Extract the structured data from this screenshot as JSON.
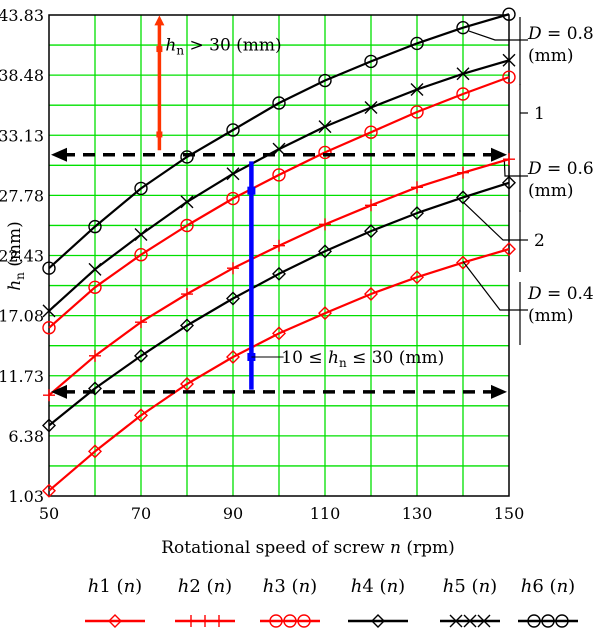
{
  "chart_data": {
    "type": "line",
    "xlabel_prefix": "Rotational speed of screw ",
    "xlabel_var": "n",
    "xlabel_unit": " (rpm)",
    "ylabel_var": "h",
    "ylabel_sub": "n",
    "ylabel_unit": " (mm)",
    "xlim": [
      50,
      150
    ],
    "ylim": [
      1.03,
      43.83
    ],
    "x_ticks": [
      "50",
      "70",
      "90",
      "110",
      "130",
      "150"
    ],
    "y_ticks": [
      "1.03",
      "6.38",
      "11.73",
      "17.08",
      "22.43",
      "27.78",
      "33.13",
      "38.48",
      "43.83"
    ],
    "grid": true,
    "x": [
      50,
      60,
      70,
      80,
      90,
      100,
      110,
      120,
      130,
      140,
      150
    ],
    "series": [
      {
        "name": "h1 (n)",
        "label_var": "h",
        "label_idx": "1",
        "label_arg": "n",
        "color": "#ff0000",
        "marker": "diamond",
        "values": [
          1.5,
          5.0,
          8.2,
          11.0,
          13.4,
          15.5,
          17.3,
          19.0,
          20.5,
          21.8,
          23.0
        ]
      },
      {
        "name": "h2 (n)",
        "label_var": "h",
        "label_idx": "2",
        "label_arg": "n",
        "color": "#ff0000",
        "marker": "plus",
        "values": [
          10.0,
          13.5,
          16.5,
          19.0,
          21.3,
          23.3,
          25.2,
          26.9,
          28.5,
          29.8,
          31.0
        ]
      },
      {
        "name": "h3 (n)",
        "label_var": "h",
        "label_idx": "3",
        "label_arg": "n",
        "color": "#ff0000",
        "marker": "circle",
        "values": [
          16.0,
          19.6,
          22.5,
          25.1,
          27.5,
          29.6,
          31.6,
          33.4,
          35.2,
          36.8,
          38.3
        ]
      },
      {
        "name": "h4 (n)",
        "label_var": "h",
        "label_idx": "4",
        "label_arg": "n",
        "color": "#000000",
        "marker": "diamond",
        "values": [
          7.3,
          10.6,
          13.5,
          16.2,
          18.6,
          20.8,
          22.8,
          24.6,
          26.2,
          27.6,
          28.9
        ]
      },
      {
        "name": "h5 (n)",
        "label_var": "h",
        "label_idx": "5",
        "label_arg": "n",
        "color": "#000000",
        "marker": "x",
        "values": [
          17.5,
          21.2,
          24.3,
          27.2,
          29.7,
          31.9,
          33.9,
          35.6,
          37.2,
          38.6,
          39.8
        ]
      },
      {
        "name": "h6 (n)",
        "label_var": "h",
        "label_idx": "6",
        "label_arg": "n",
        "color": "#000000",
        "marker": "circle",
        "values": [
          21.3,
          25.0,
          28.4,
          31.2,
          33.6,
          36.0,
          38.0,
          39.7,
          41.3,
          42.7,
          43.9
        ]
      }
    ],
    "annotations": {
      "upper_zone": {
        "var": "h",
        "sub": "n",
        "text": " > 30 (mm)",
        "x": 74,
        "y_from": 31.8,
        "y_to": 43.8,
        "color": "#ff3300"
      },
      "mid_zone": {
        "prefix": "10 ≤ ",
        "var": "h",
        "sub": "n",
        "text": " ≤ 30 (mm)",
        "x": 94,
        "y_from": 10.5,
        "y_to": 30.8,
        "color": "#0000ff"
      },
      "dashed_upper_y": 31.4,
      "dashed_lower_y": 10.3,
      "group_labels": [
        {
          "line1": "D = 0.8",
          "line2": "(mm)",
          "var": "D",
          "text1": " = 0.8"
        },
        {
          "line1": "1"
        },
        {
          "line1": "D = 0.6",
          "line2": "(mm)",
          "var": "D",
          "text1": " = 0.6"
        },
        {
          "line1": "2"
        },
        {
          "line1": "D = 0.4",
          "line2": "(mm)",
          "var": "D",
          "text1": " = 0.4"
        }
      ]
    }
  }
}
